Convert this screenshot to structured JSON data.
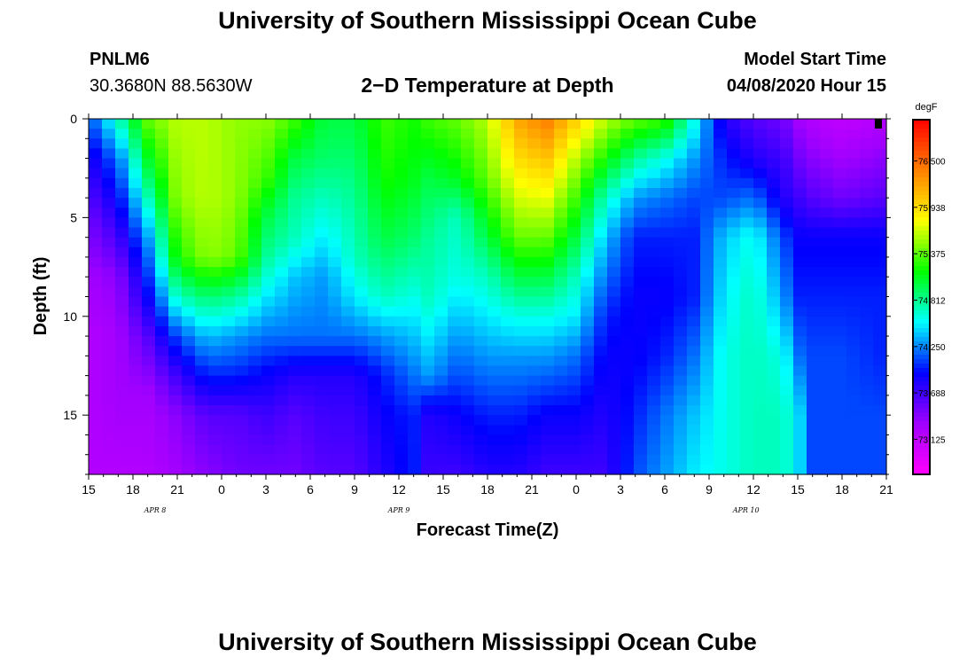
{
  "page": {
    "title_top": "University of Southern Mississippi Ocean Cube",
    "title_bottom": "University of Southern Mississippi Ocean Cube",
    "station_id": "PNLM6",
    "station_coords": "30.3680N 88.5630W",
    "plot_title": "2−D Temperature at Depth",
    "model_start_label": "Model Start Time",
    "model_start_value": "04/08/2020 Hour 15"
  },
  "chart_data": {
    "type": "heatmap",
    "title": "2−D Temperature at Depth",
    "xlabel": "Forecast Time(Z)",
    "ylabel": "Depth (ft)",
    "x_range_hours": [
      0,
      54
    ],
    "x_ticks": [
      {
        "hour": 0,
        "label": "15"
      },
      {
        "hour": 3,
        "label": "18"
      },
      {
        "hour": 6,
        "label": "21"
      },
      {
        "hour": 9,
        "label": "0"
      },
      {
        "hour": 12,
        "label": "3"
      },
      {
        "hour": 15,
        "label": "6"
      },
      {
        "hour": 18,
        "label": "9"
      },
      {
        "hour": 21,
        "label": "12"
      },
      {
        "hour": 24,
        "label": "15"
      },
      {
        "hour": 27,
        "label": "18"
      },
      {
        "hour": 30,
        "label": "21"
      },
      {
        "hour": 33,
        "label": "0"
      },
      {
        "hour": 36,
        "label": "3"
      },
      {
        "hour": 39,
        "label": "6"
      },
      {
        "hour": 42,
        "label": "9"
      },
      {
        "hour": 45,
        "label": "12"
      },
      {
        "hour": 48,
        "label": "15"
      },
      {
        "hour": 51,
        "label": "18"
      },
      {
        "hour": 54,
        "label": "21"
      }
    ],
    "date_labels": [
      {
        "hour": 4.5,
        "label": "APR 8"
      },
      {
        "hour": 21,
        "label": "APR 9"
      },
      {
        "hour": 44.5,
        "label": "APR 10"
      }
    ],
    "y_range_ft": [
      0,
      18
    ],
    "y_ticks": [
      0,
      5,
      10,
      15
    ],
    "colorbar": {
      "unit": "degF",
      "min": 72.7,
      "max": 77.0,
      "tick_values": [
        76.5,
        75.938,
        75.375,
        74.812,
        74.25,
        73.688,
        73.125
      ],
      "tick_labels": [
        "76.500",
        "75.938",
        "75.375",
        "74.812",
        "74.250",
        "73.688",
        "73.125"
      ],
      "colors": [
        "#ff00ff",
        "#a000ff",
        "#0000ff",
        "#00ffff",
        "#00ff00",
        "#ffff00",
        "#ff8000",
        "#ff0000"
      ]
    },
    "depth_levels_ft": [
      0,
      1,
      2,
      3,
      4,
      5,
      6,
      7,
      8,
      9,
      10,
      11,
      12,
      13,
      14,
      15,
      16,
      17,
      18
    ],
    "profiles": [
      {
        "hour": 0,
        "depth_ft": [
          0,
          2,
          5,
          8,
          11,
          14,
          18
        ],
        "temp_f": [
          74.1,
          73.8,
          73.5,
          73.3,
          73.2,
          73.2,
          73.2
        ]
      },
      {
        "hour": 2,
        "depth_ft": [
          0,
          2,
          5,
          8,
          11,
          14,
          18
        ],
        "temp_f": [
          74.7,
          74.2,
          73.8,
          73.4,
          73.3,
          73.3,
          73.2
        ]
      },
      {
        "hour": 4,
        "depth_ft": [
          0,
          3,
          6,
          9,
          11,
          14,
          18
        ],
        "temp_f": [
          75.4,
          74.9,
          74.3,
          73.9,
          73.6,
          73.3,
          73.2
        ]
      },
      {
        "hour": 6,
        "depth_ft": [
          0,
          4,
          7,
          9,
          11,
          13,
          15,
          18
        ],
        "temp_f": [
          75.6,
          75.5,
          75.2,
          74.7,
          74.1,
          73.7,
          73.4,
          73.3
        ]
      },
      {
        "hour": 8,
        "depth_ft": [
          0,
          4,
          7,
          9,
          11,
          13,
          15,
          18
        ],
        "temp_f": [
          75.6,
          75.6,
          75.5,
          74.9,
          74.4,
          74.0,
          73.6,
          73.4
        ]
      },
      {
        "hour": 10,
        "depth_ft": [
          0,
          4,
          7,
          9,
          11,
          13,
          15,
          18
        ],
        "temp_f": [
          75.5,
          75.5,
          75.4,
          74.8,
          74.3,
          74.0,
          73.6,
          73.5
        ]
      },
      {
        "hour": 12,
        "depth_ft": [
          0,
          3,
          5,
          7,
          9,
          11,
          13,
          15,
          18
        ],
        "temp_f": [
          75.5,
          75.3,
          75.0,
          74.8,
          74.5,
          74.2,
          73.9,
          73.7,
          73.5
        ]
      },
      {
        "hour": 14,
        "depth_ft": [
          0,
          2,
          4,
          6,
          8,
          11,
          13,
          15,
          18
        ],
        "temp_f": [
          75.3,
          75.0,
          74.8,
          74.7,
          74.4,
          74.2,
          73.8,
          73.6,
          73.5
        ]
      },
      {
        "hour": 16,
        "depth_ft": [
          0,
          2,
          4,
          6,
          8,
          11,
          13,
          15,
          18
        ],
        "temp_f": [
          75.0,
          74.9,
          74.7,
          74.5,
          74.3,
          74.2,
          73.8,
          73.7,
          73.6
        ]
      },
      {
        "hour": 18,
        "depth_ft": [
          0,
          2,
          4,
          7,
          9,
          11,
          13,
          15,
          18
        ],
        "temp_f": [
          75.0,
          74.9,
          74.8,
          74.7,
          74.5,
          74.2,
          73.8,
          73.7,
          73.6
        ]
      },
      {
        "hour": 20,
        "depth_ft": [
          0,
          3,
          6,
          9,
          11,
          13,
          15,
          18
        ],
        "temp_f": [
          75.3,
          75.2,
          75.0,
          74.7,
          74.3,
          74.0,
          73.9,
          73.8
        ]
      },
      {
        "hour": 22,
        "depth_ft": [
          0,
          3,
          6,
          9,
          11,
          13,
          15,
          18
        ],
        "temp_f": [
          75.2,
          75.1,
          74.9,
          74.6,
          74.4,
          74.2,
          74.0,
          74.0
        ]
      },
      {
        "hour": 23,
        "depth_ft": [
          0,
          3,
          6,
          9,
          11,
          13,
          15,
          18
        ],
        "temp_f": [
          75.3,
          75.0,
          74.8,
          74.7,
          74.5,
          74.3,
          73.8,
          73.7
        ]
      },
      {
        "hour": 25,
        "depth_ft": [
          0,
          3,
          5,
          8,
          11,
          13,
          15,
          18
        ],
        "temp_f": [
          75.4,
          75.1,
          74.7,
          74.6,
          74.3,
          74.1,
          73.9,
          73.7
        ]
      },
      {
        "hour": 27,
        "depth_ft": [
          0,
          3,
          6,
          8,
          10,
          12,
          15,
          18
        ],
        "temp_f": [
          75.6,
          75.4,
          75.0,
          74.7,
          74.5,
          74.3,
          74.0,
          73.8
        ]
      },
      {
        "hour": 29,
        "depth_ft": [
          0,
          3,
          6,
          8,
          10,
          12,
          15,
          18
        ],
        "temp_f": [
          76.2,
          75.8,
          75.4,
          75.0,
          74.6,
          74.3,
          74.0,
          73.8
        ]
      },
      {
        "hour": 31,
        "depth_ft": [
          0,
          3,
          6,
          8,
          10,
          12,
          15,
          18
        ],
        "temp_f": [
          76.4,
          75.9,
          75.4,
          75.0,
          74.6,
          74.3,
          73.9,
          73.7
        ]
      },
      {
        "hour": 33,
        "depth_ft": [
          0,
          2,
          4,
          6,
          8,
          10,
          12,
          15,
          18
        ],
        "temp_f": [
          76.0,
          75.6,
          75.3,
          75.0,
          74.7,
          74.5,
          74.2,
          73.9,
          73.7
        ]
      },
      {
        "hour": 35,
        "depth_ft": [
          0,
          2,
          4,
          6,
          8,
          10,
          12,
          15,
          18
        ],
        "temp_f": [
          75.6,
          75.2,
          74.7,
          74.4,
          74.2,
          74.0,
          73.9,
          73.8,
          73.7
        ]
      },
      {
        "hour": 37,
        "depth_ft": [
          0,
          2,
          4,
          6,
          9,
          12,
          15,
          18
        ],
        "temp_f": [
          75.4,
          74.8,
          74.3,
          74.0,
          73.9,
          73.9,
          74.0,
          74.1
        ]
      },
      {
        "hour": 39,
        "depth_ft": [
          0,
          2,
          4,
          6,
          9,
          12,
          15,
          18
        ],
        "temp_f": [
          75.3,
          74.6,
          74.2,
          74.0,
          73.9,
          74.0,
          74.2,
          74.3
        ]
      },
      {
        "hour": 41,
        "depth_ft": [
          0,
          2,
          4,
          6,
          9,
          12,
          15,
          18
        ],
        "temp_f": [
          74.6,
          74.3,
          74.1,
          74.0,
          74.0,
          74.2,
          74.4,
          74.5
        ]
      },
      {
        "hour": 43,
        "depth_ft": [
          0,
          2,
          4,
          6,
          9,
          12,
          15,
          18
        ],
        "temp_f": [
          73.8,
          74.0,
          74.1,
          74.4,
          74.5,
          74.6,
          74.6,
          74.6
        ]
      },
      {
        "hour": 45,
        "depth_ft": [
          0,
          2,
          4,
          6,
          9,
          12,
          15,
          18
        ],
        "temp_f": [
          73.6,
          73.8,
          74.2,
          74.6,
          74.7,
          74.7,
          74.7,
          74.7
        ]
      },
      {
        "hour": 47,
        "depth_ft": [
          0,
          2,
          4,
          6,
          9,
          12,
          15,
          18
        ],
        "temp_f": [
          73.5,
          73.7,
          73.8,
          74.1,
          74.3,
          74.6,
          74.7,
          74.7
        ]
      },
      {
        "hour": 48,
        "depth_ft": [
          0,
          2,
          4,
          6,
          9,
          12,
          15,
          18
        ],
        "temp_f": [
          73.3,
          73.5,
          73.7,
          73.9,
          74.0,
          74.2,
          74.5,
          74.5
        ]
      },
      {
        "hour": 49,
        "depth_ft": [
          0,
          2,
          4,
          6,
          9,
          12,
          15,
          18
        ],
        "temp_f": [
          73.2,
          73.4,
          73.6,
          73.9,
          74.0,
          74.1,
          74.1,
          74.1
        ]
      },
      {
        "hour": 51,
        "depth_ft": [
          0,
          2,
          4,
          6,
          9,
          12,
          15,
          18
        ],
        "temp_f": [
          73.1,
          73.3,
          73.5,
          73.9,
          74.0,
          74.1,
          74.1,
          74.1
        ]
      },
      {
        "hour": 54,
        "depth_ft": [
          0,
          2,
          4,
          6,
          9,
          12,
          15,
          18
        ],
        "temp_f": [
          73.2,
          73.4,
          73.6,
          73.9,
          74.0,
          74.0,
          74.1,
          74.1
        ]
      }
    ]
  }
}
